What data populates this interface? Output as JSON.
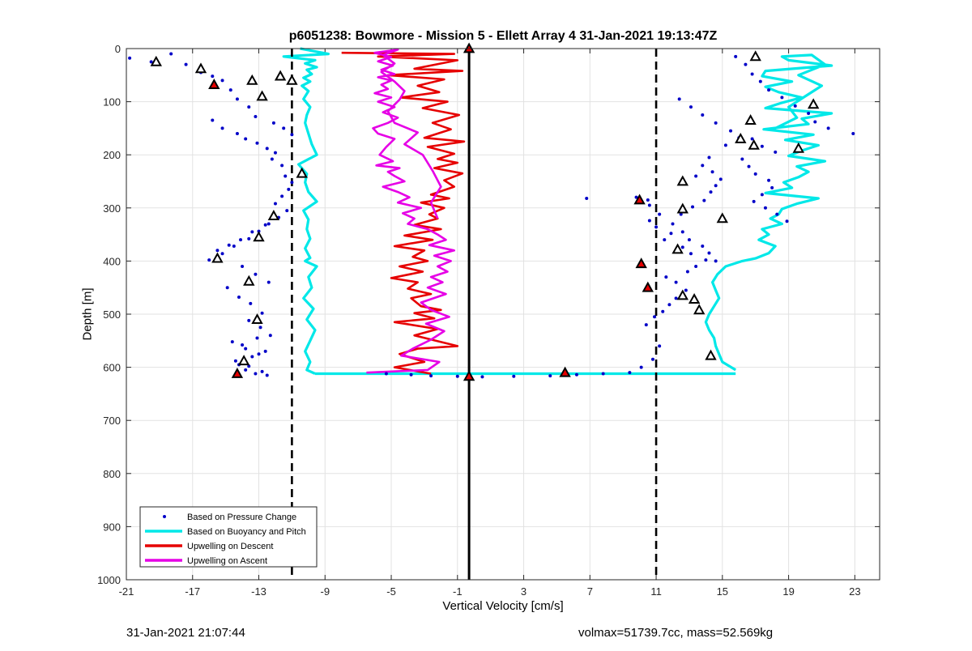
{
  "chart_data": {
    "type": "scatter",
    "title": "p6051238: Bowmore - Mission 5 - Ellett Array 4 31-Jan-2021 19:13:47Z",
    "xlabel": "Vertical Velocity [cm/s]",
    "ylabel": "Depth [m]",
    "xlim": [
      -21,
      24.5
    ],
    "ylim": [
      0,
      1000
    ],
    "y_reversed": true,
    "xticks": [
      -21,
      -17,
      -13,
      -9,
      -5,
      -1,
      3,
      7,
      11,
      15,
      19,
      23
    ],
    "yticks": [
      0,
      100,
      200,
      300,
      400,
      500,
      600,
      700,
      800,
      900,
      1000
    ],
    "grid": true,
    "legend_location": "bottom-left",
    "reference_lines": [
      {
        "x": -0.3,
        "style": "solid"
      },
      {
        "x": -11,
        "style": "dashed"
      },
      {
        "x": 11,
        "style": "dashed"
      }
    ],
    "series": [
      {
        "name": "Based on Pressure Change",
        "kind": "points",
        "color": "#0000c8",
        "x": [
          -20.8,
          -19.5,
          -18.3,
          -17.4,
          -16.5,
          -15.8,
          -15.2,
          -14.7,
          -14.3,
          -13.6,
          -13.2,
          -12.1,
          -11.5,
          -11.0,
          -15.8,
          -15.2,
          -14.3,
          -13.8,
          -13.1,
          -12.5,
          -12.0,
          -12.2,
          -11.6,
          -11.4,
          -11.0,
          -11.2,
          -11.6,
          -12.0,
          -11.3,
          -11.8,
          -12.4,
          -13.0,
          -13.6,
          -14.5,
          -15.2,
          -16.0,
          -15.5,
          -14.8,
          -14.1,
          -13.4,
          -12.6,
          -12.2,
          -14.0,
          -13.2,
          -12.4,
          -14.9,
          -14.2,
          -13.5,
          -12.8,
          -13.6,
          -12.9,
          -12.3,
          -14.6,
          -13.8,
          -13.0,
          -14.4,
          -13.6,
          -12.8,
          -12.5,
          -13.2,
          -13.8,
          -14.2,
          -13.4,
          -12.6,
          -14.0,
          -13.1,
          -5.3,
          -3.8,
          -2.6,
          -1.0,
          0.5,
          2.4,
          4.6,
          6.2,
          7.8,
          9.4,
          10.1,
          10.8,
          11.2,
          10.4,
          10.9,
          11.4,
          11.8,
          12.2,
          12.8,
          12.2,
          11.6,
          12.9,
          13.4,
          14.0,
          13.1,
          12.6,
          11.5,
          11.9,
          11.0,
          10.6,
          12.5,
          13.2,
          13.9,
          14.3,
          14.6,
          14.9,
          14.4,
          13.8,
          14.2,
          15.8,
          16.4,
          16.8,
          17.3,
          17.8,
          18.6,
          19.4,
          20.2,
          20.6,
          21.4,
          22.9,
          16.8,
          17.4,
          18.2,
          16.2,
          16.6,
          17.0,
          17.8,
          18.0,
          17.4,
          16.9,
          17.6,
          18.3,
          18.9,
          12.4,
          13.1,
          13.8,
          14.6,
          15.5,
          16.0,
          15.2,
          10.5,
          6.8,
          9.8,
          10.6,
          11.2,
          12.0,
          12.6,
          13.0,
          13.8,
          14.2,
          14.6,
          13.4
        ],
        "depth": [
          18,
          25,
          10,
          30,
          45,
          52,
          60,
          78,
          95,
          110,
          128,
          140,
          150,
          162,
          135,
          150,
          160,
          170,
          178,
          188,
          196,
          208,
          220,
          240,
          252,
          265,
          278,
          292,
          305,
          318,
          330,
          344,
          358,
          372,
          386,
          398,
          380,
          370,
          360,
          345,
          332,
          320,
          410,
          425,
          440,
          450,
          468,
          480,
          498,
          512,
          525,
          540,
          552,
          565,
          575,
          588,
          598,
          608,
          615,
          612,
          605,
          595,
          580,
          570,
          558,
          545,
          612,
          614,
          616,
          617,
          618,
          617,
          616,
          614,
          612,
          610,
          600,
          585,
          560,
          520,
          505,
          495,
          482,
          470,
          455,
          440,
          430,
          420,
          410,
          398,
          386,
          374,
          360,
          348,
          336,
          324,
          312,
          298,
          286,
          270,
          258,
          246,
          232,
          220,
          205,
          15,
          30,
          48,
          62,
          78,
          92,
          108,
          122,
          138,
          150,
          160,
          170,
          184,
          195,
          208,
          222,
          236,
          248,
          262,
          275,
          288,
          300,
          312,
          325,
          95,
          110,
          125,
          140,
          155,
          168,
          182,
          285,
          282,
          280,
          295,
          312,
          330,
          345,
          360,
          372,
          385,
          400,
          240
        ]
      },
      {
        "name": "Based on Buoyancy and Pitch",
        "kind": "line",
        "color": "#00e8e8",
        "branches": [
          {
            "x": [
              -10.5,
              -8.8,
              -11.5,
              -9.6,
              -10.2,
              -9.5,
              -10.1,
              -9.8,
              -10.3,
              -9.9,
              -10.4,
              -10.0,
              -10.3,
              -9.9,
              -10.1,
              -10.2,
              -10.0,
              -9.8,
              -9.5,
              -10.6,
              -10.1,
              -10.2,
              -10.0,
              -9.5,
              -10.3,
              -10.0,
              -10.1,
              -9.9,
              -10.2,
              -9.9,
              -10.2,
              -9.5,
              -10.0,
              -9.8,
              -10.3,
              -9.7,
              -10.1,
              -9.6,
              -9.9,
              -10.2,
              -9.9,
              -10.1,
              -9.6
            ],
            "depth": [
              0,
              10,
              15,
              22,
              28,
              35,
              40,
              48,
              55,
              62,
              70,
              80,
              95,
              110,
              125,
              140,
              160,
              180,
              200,
              218,
              236,
              252,
              270,
              288,
              305,
              322,
              340,
              358,
              376,
              394,
              400,
              410,
              430,
              450,
              470,
              490,
              510,
              530,
              550,
              570,
              590,
              605,
              612
            ]
          },
          {
            "x": [
              -9.6,
              -8.0,
              -4.0,
              0.0,
              4.0,
              8.0,
              12.0,
              15.8
            ],
            "depth": [
              612,
              612,
              612,
              612,
              612,
              612,
              612,
              612
            ]
          },
          {
            "x": [
              15.8,
              15.0,
              14.8,
              14.6,
              14.5,
              14.2,
              14.0,
              14.2,
              14.5,
              14.8,
              14.6,
              14.4,
              14.7,
              15.2,
              16.2,
              17.0,
              17.8,
              18.2,
              17.2,
              17.8,
              17.4,
              18.6,
              17.9,
              18.4,
              18.6,
              19.5,
              20.8,
              17.6,
              19.2,
              18.7,
              19.6,
              20.2,
              19.5,
              21.2,
              19.0,
              19.8,
              20.8,
              18.8,
              20.5,
              17.5,
              20.2,
              19.8,
              21.6,
              17.6,
              18.6,
              19.8,
              18.4,
              17.6,
              19.2,
              17.4,
              17.6,
              21.6,
              19.0,
              18.6,
              20.4,
              21.2,
              19.6,
              21.0,
              20.0,
              19.0,
              19.5,
              18.2
            ],
            "depth": [
              605,
              590,
              575,
              560,
              545,
              530,
              515,
              500,
              485,
              470,
              455,
              440,
              425,
              410,
              400,
              395,
              385,
              372,
              360,
              350,
              340,
              330,
              320,
              312,
              302,
              292,
              282,
              272,
              262,
              252,
              242,
              232,
              222,
              212,
              202,
              192,
              182,
              172,
              162,
              152,
              142,
              132,
              122,
              112,
              102,
              92,
              82,
              72,
              62,
              52,
              42,
              32,
              22,
              15,
              12,
              30,
              50,
              70,
              90,
              110,
              130,
              150
            ]
          }
        ]
      },
      {
        "name": "Upwelling on Descent",
        "kind": "line",
        "color": "#e60000",
        "x": [
          -8.0,
          -1.2,
          -5.8,
          -1.0,
          -3.6,
          -0.7,
          -5.2,
          -1.8,
          -3.4,
          -2.1,
          -4.4,
          -1.6,
          -3.1,
          -0.9,
          -2.5,
          -1.4,
          -3.0,
          -0.6,
          -2.8,
          -1.2,
          -2.2,
          -1.0,
          -2.4,
          -0.7,
          -1.8,
          -1.2,
          -2.6,
          -1.5,
          -3.2,
          -1.8,
          -2.7,
          -2.2,
          -3.6,
          -2.0,
          -4.2,
          -2.5,
          -4.8,
          -3.0,
          -3.7,
          -2.8,
          -4.5,
          -3.1,
          -5.0,
          -3.4,
          -4.0,
          -2.6,
          -3.8,
          -3.2,
          -2.0,
          -3.6,
          -2.4,
          -4.8,
          -2.2,
          -3.6,
          -1.0,
          -3.4,
          -4.5,
          -3.0,
          -4.8,
          -2.6
        ],
        "depth": [
          8,
          10,
          15,
          22,
          38,
          42,
          50,
          58,
          70,
          82,
          92,
          100,
          112,
          125,
          140,
          152,
          168,
          175,
          185,
          198,
          208,
          215,
          225,
          235,
          248,
          260,
          275,
          282,
          290,
          300,
          312,
          320,
          332,
          340,
          352,
          360,
          372,
          380,
          392,
          400,
          410,
          420,
          432,
          440,
          452,
          462,
          470,
          485,
          492,
          498,
          508,
          515,
          528,
          540,
          560,
          565,
          575,
          590,
          600,
          612
        ]
      },
      {
        "name": "Upwelling on Ascent",
        "kind": "line",
        "color": "#e600e6",
        "x": [
          -6.5,
          -2.8,
          -2.1,
          -4.4,
          -3.7,
          -2.6,
          -1.8,
          -2.9,
          -1.5,
          -2.6,
          -3.2,
          -1.7,
          -2.8,
          -1.9,
          -2.6,
          -1.6,
          -2.2,
          -1.4,
          -2.4,
          -1.2,
          -2.7,
          -1.7,
          -2.2,
          -2.8,
          -4.0,
          -3.6,
          -4.3,
          -3.2,
          -4.6,
          -3.9,
          -4.6,
          -5.5,
          -4.2,
          -4.8,
          -5.2,
          -4.5,
          -5.9,
          -4.9,
          -5.7,
          -5.3,
          -4.8,
          -5.8,
          -6.1,
          -5.2,
          -4.6,
          -5.5,
          -4.8,
          -5.8,
          -5.0,
          -6.0,
          -5.2,
          -5.6,
          -5.0,
          -5.8,
          -4.8,
          -5.6,
          -4.9,
          -5.8,
          -5.0,
          -6.0,
          -4.6,
          -5.5,
          -4.8,
          -5.6,
          -4.8,
          -4.2,
          -4.5,
          -5.2,
          -4.8,
          -3.4,
          -4.2,
          -3.1,
          -2.5,
          -2.0,
          -2.6,
          -2.2
        ],
        "depth": [
          610,
          605,
          590,
          578,
          565,
          548,
          532,
          518,
          505,
          492,
          478,
          462,
          450,
          440,
          430,
          420,
          410,
          400,
          390,
          380,
          370,
          360,
          350,
          340,
          330,
          320,
          310,
          300,
          290,
          280,
          270,
          260,
          250,
          240,
          232,
          225,
          220,
          212,
          200,
          185,
          170,
          160,
          150,
          140,
          130,
          120,
          110,
          100,
          92,
          84,
          76,
          68,
          60,
          54,
          48,
          40,
          32,
          24,
          16,
          8,
          2,
          12,
          28,
          44,
          62,
          80,
          96,
          118,
          140,
          158,
          180,
          200,
          230,
          260,
          290,
          320
        ]
      }
    ],
    "markers": [
      {
        "kind": "triangle-up",
        "fill": "none",
        "points": [
          [
            -19.2,
            25
          ],
          [
            -16.5,
            38
          ],
          [
            -13.4,
            60
          ],
          [
            -12.8,
            90
          ],
          [
            -11.7,
            52
          ],
          [
            -11.0,
            60
          ],
          [
            -10.4,
            235
          ],
          [
            -12.1,
            315
          ],
          [
            -13.0,
            355
          ],
          [
            -15.5,
            395
          ],
          [
            -13.6,
            438
          ],
          [
            -13.1,
            510
          ],
          [
            -13.9,
            588
          ],
          [
            17.0,
            15
          ],
          [
            20.5,
            105
          ],
          [
            16.7,
            135
          ],
          [
            16.1,
            170
          ],
          [
            16.9,
            182
          ],
          [
            19.6,
            188
          ],
          [
            12.6,
            250
          ],
          [
            12.6,
            302
          ],
          [
            15.0,
            320
          ],
          [
            12.3,
            378
          ],
          [
            13.3,
            472
          ],
          [
            13.6,
            492
          ],
          [
            14.3,
            578
          ],
          [
            12.6,
            465
          ]
        ]
      },
      {
        "kind": "triangle-up",
        "fill": "red",
        "points": [
          [
            -15.7,
            68
          ],
          [
            -14.3,
            612
          ],
          [
            -0.3,
            0
          ],
          [
            -0.3,
            617
          ],
          [
            5.5,
            610
          ],
          [
            10.0,
            285
          ],
          [
            10.1,
            405
          ],
          [
            10.5,
            450
          ]
        ]
      }
    ],
    "legend": [
      "Based on Pressure Change",
      "Based on Buoyancy and Pitch",
      "Upwelling on Descent",
      "Upwelling on Ascent"
    ]
  },
  "footer": {
    "left": "31-Jan-2021 21:07:44",
    "right": "volmax=51739.7cc, mass=52.569kg"
  }
}
